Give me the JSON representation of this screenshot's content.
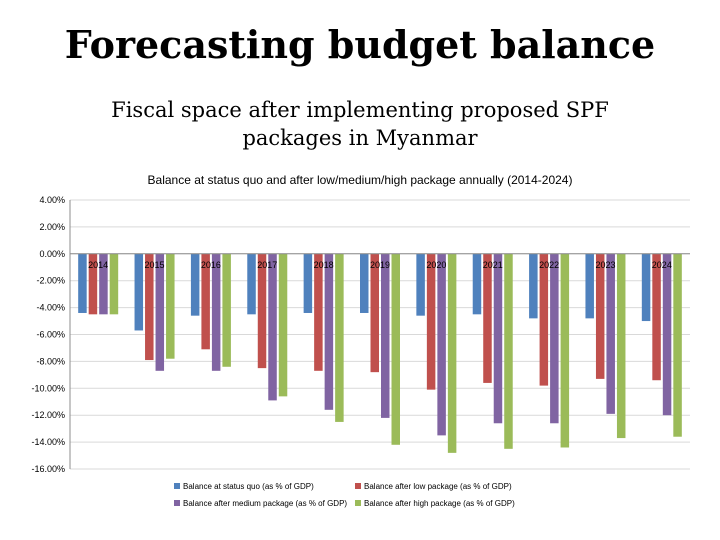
{
  "page": {
    "title": "Forecasting budget balance",
    "subtitle": "Fiscal space after implementing proposed SPF packages in Myanmar"
  },
  "chart_data": {
    "type": "bar",
    "title": "Balance at status quo and after low/medium/high package annually (2014-2024)",
    "categories": [
      "2014",
      "2015",
      "2016",
      "2017",
      "2018",
      "2019",
      "2020",
      "2021",
      "2022",
      "2023",
      "2024"
    ],
    "ylim": [
      -16,
      4
    ],
    "yticks": [
      4,
      2,
      0,
      -2,
      -4,
      -6,
      -8,
      -10,
      -12,
      -14,
      -16
    ],
    "ytick_labels": [
      "4.00%",
      "2.00%",
      "0.00%",
      "-2.00%",
      "-4.00%",
      "-6.00%",
      "-8.00%",
      "-10.00%",
      "-12.00%",
      "-14.00%",
      "-16.00%"
    ],
    "grid": true,
    "legend_position": "bottom",
    "series": [
      {
        "name": "Balance at status quo (as % of GDP)",
        "color": "#4F81BD",
        "values": [
          -4.4,
          -5.7,
          -4.6,
          -4.5,
          -4.4,
          -4.4,
          -4.6,
          -4.5,
          -4.8,
          -4.8,
          -5.0
        ]
      },
      {
        "name": "Balance after low package (as % of GDP)",
        "color": "#C0504D",
        "values": [
          -4.5,
          -7.9,
          -7.1,
          -8.5,
          -8.7,
          -8.8,
          -10.1,
          -9.6,
          -9.8,
          -9.3,
          -9.4
        ]
      },
      {
        "name": "Balance after medium package (as % of GDP)",
        "color": "#8064A2",
        "values": [
          -4.5,
          -8.7,
          -8.7,
          -10.9,
          -11.6,
          -12.2,
          -13.5,
          -12.6,
          -12.6,
          -11.9,
          -12.0
        ]
      },
      {
        "name": "Balance after high package (as % of GDP)",
        "color": "#9BBB59",
        "values": [
          -4.5,
          -7.8,
          -8.4,
          -10.6,
          -12.5,
          -14.2,
          -14.8,
          -14.5,
          -14.4,
          -13.7,
          -13.6
        ]
      }
    ],
    "legend_labels": [
      "Balance at status quo (as % of GDP)",
      "Balance after low package (as % of GDP)",
      "Balance after medium package (as % of GDP)",
      "Balance after high package (as % of GDP)"
    ]
  }
}
